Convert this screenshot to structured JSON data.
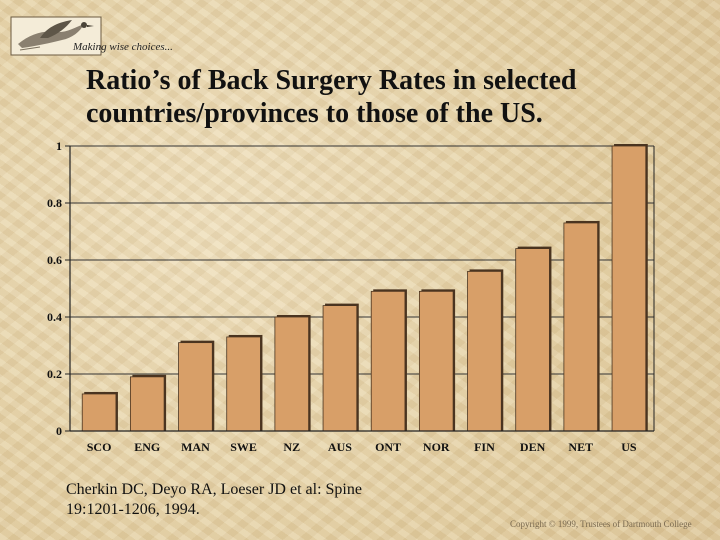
{
  "header": {
    "logo_icon": "duck-logo-icon",
    "tagline": "Making wise choices..."
  },
  "title": "Ratio’s of Back Surgery Rates in selected countries/provinces to those of the US.",
  "citation": {
    "line1": "Cherkin DC, Deyo RA, Loeser JD et al: Spine",
    "line2": "19:1201-1206, 1994."
  },
  "copyright": "Copyright © 1999, Trustees of Dartmouth College",
  "colors": {
    "bar_fill": "#d89f68",
    "bar_edge": "#4a3420",
    "axis": "#222222"
  },
  "chart_data": {
    "type": "bar",
    "title": "Ratio’s of Back Surgery Rates in selected countries/provinces to those of the US.",
    "xlabel": "",
    "ylabel": "",
    "ylim": [
      0,
      1
    ],
    "yticks": [
      0,
      0.2,
      0.4,
      0.6,
      0.8,
      1
    ],
    "ytick_labels": [
      "0",
      "0.2",
      "0.4",
      "0.6",
      "0.8",
      "1"
    ],
    "grid": true,
    "categories": [
      "SCO",
      "ENG",
      "MAN",
      "SWE",
      "NZ",
      "AUS",
      "ONT",
      "NOR",
      "FIN",
      "DEN",
      "NET",
      "US"
    ],
    "values": [
      0.13,
      0.19,
      0.31,
      0.33,
      0.4,
      0.44,
      0.49,
      0.49,
      0.56,
      0.64,
      0.73,
      1.0
    ]
  }
}
